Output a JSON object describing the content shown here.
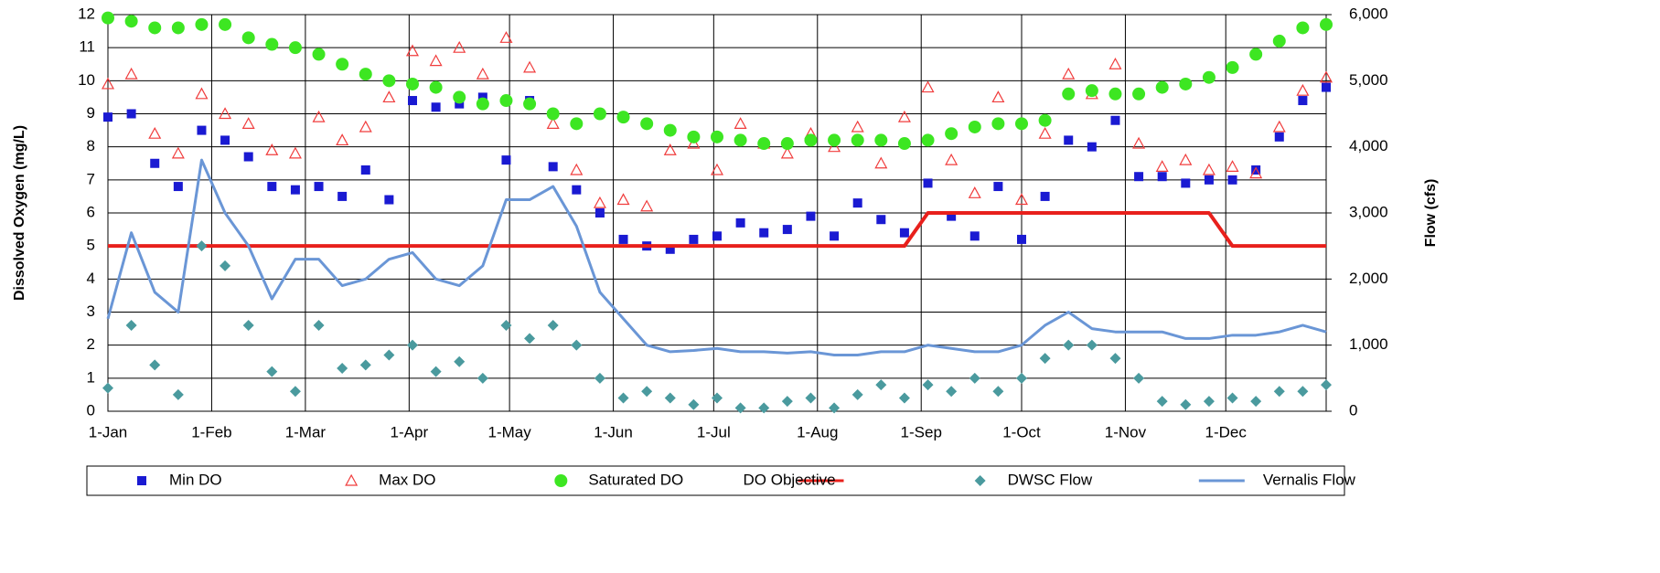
{
  "chart_data": {
    "type": "line",
    "ylabel": "Dissolved Oxygen (mg/L)",
    "y2label": "Flow (cfs)",
    "x": [
      "1-Jan",
      "8-Jan",
      "15-Jan",
      "22-Jan",
      "29-Jan",
      "5-Feb",
      "12-Feb",
      "19-Feb",
      "26-Feb",
      "5-Mar",
      "12-Mar",
      "19-Mar",
      "26-Mar",
      "2-Apr",
      "9-Apr",
      "16-Apr",
      "23-Apr",
      "30-Apr",
      "7-May",
      "14-May",
      "21-May",
      "28-May",
      "4-Jun",
      "11-Jun",
      "18-Jun",
      "25-Jun",
      "2-Jul",
      "9-Jul",
      "16-Jul",
      "23-Jul",
      "30-Jul",
      "6-Aug",
      "13-Aug",
      "20-Aug",
      "27-Aug",
      "3-Sep",
      "10-Sep",
      "17-Sep",
      "24-Sep",
      "1-Oct",
      "8-Oct",
      "15-Oct",
      "22-Oct",
      "29-Oct",
      "5-Nov",
      "12-Nov",
      "19-Nov",
      "26-Nov",
      "3-Dec",
      "10-Dec",
      "17-Dec",
      "24-Dec",
      "31-Dec"
    ],
    "xlim": [
      1,
      365
    ],
    "xticks": [
      {
        "value": 1,
        "label": "1-Jan"
      },
      {
        "value": 32,
        "label": "1-Feb"
      },
      {
        "value": 60,
        "label": "1-Mar"
      },
      {
        "value": 91,
        "label": "1-Apr"
      },
      {
        "value": 121,
        "label": "1-May"
      },
      {
        "value": 152,
        "label": "1-Jun"
      },
      {
        "value": 182,
        "label": "1-Jul"
      },
      {
        "value": 213,
        "label": "1-Aug"
      },
      {
        "value": 244,
        "label": "1-Sep"
      },
      {
        "value": 274,
        "label": "1-Oct"
      },
      {
        "value": 305,
        "label": "1-Nov"
      },
      {
        "value": 335,
        "label": "1-Dec"
      }
    ],
    "ylim": [
      0,
      12
    ],
    "yticks": [
      0,
      1,
      2,
      3,
      4,
      5,
      6,
      7,
      8,
      9,
      10,
      11,
      12
    ],
    "y2lim": [
      0,
      6000
    ],
    "y2ticks": [
      0,
      {
        "value": 1000,
        "label": "1,000"
      },
      {
        "value": 2000,
        "label": "2,000"
      },
      {
        "value": 3000,
        "label": "3,000"
      },
      {
        "value": 4000,
        "label": "4,000"
      },
      {
        "value": 5000,
        "label": "5,000"
      },
      {
        "value": 6000,
        "label": "6,000"
      }
    ],
    "grid": true,
    "legend": "bottom",
    "series": [
      {
        "name": "Min DO",
        "color": "#1a1ad2",
        "marker": "square",
        "line": false,
        "values": [
          8.9,
          9.0,
          7.5,
          6.8,
          8.5,
          8.2,
          7.7,
          6.8,
          6.7,
          6.8,
          6.5,
          7.3,
          6.4,
          9.4,
          9.2,
          9.3,
          9.5,
          7.6,
          9.4,
          7.4,
          6.7,
          6.0,
          5.2,
          5.0,
          4.9,
          5.2,
          5.3,
          5.7,
          5.4,
          5.5,
          5.9,
          5.3,
          6.3,
          5.8,
          5.4,
          6.9,
          5.9,
          5.3,
          6.8,
          5.2,
          6.5,
          8.2,
          8.0,
          8.8,
          7.1,
          7.1,
          6.9,
          7.0,
          7.0,
          7.3,
          8.3,
          9.4,
          9.8
        ]
      },
      {
        "name": "Max DO",
        "color": "#f03c3c",
        "marker": "triangle",
        "line": false,
        "values": [
          9.9,
          10.2,
          8.4,
          7.8,
          9.6,
          9.0,
          8.7,
          7.9,
          7.8,
          8.9,
          8.2,
          8.6,
          9.5,
          10.9,
          10.6,
          11.0,
          10.2,
          11.3,
          10.4,
          8.7,
          7.3,
          6.3,
          6.4,
          6.2,
          7.9,
          8.1,
          7.3,
          8.7,
          8.1,
          7.8,
          8.4,
          8.0,
          8.6,
          7.5,
          8.9,
          9.8,
          7.6,
          6.6,
          9.5,
          6.4,
          8.4,
          10.2,
          9.6,
          10.5,
          8.1,
          7.4,
          7.6,
          7.3,
          7.4,
          7.2,
          8.6,
          9.7,
          10.1
        ]
      },
      {
        "name": "Saturated DO",
        "color": "#3de622",
        "marker": "circle",
        "line": false,
        "values": [
          11.9,
          11.8,
          11.6,
          11.6,
          11.7,
          11.7,
          11.3,
          11.1,
          11.0,
          10.8,
          10.5,
          10.2,
          10.0,
          9.9,
          9.8,
          9.5,
          9.3,
          9.4,
          9.3,
          9.0,
          8.7,
          9.0,
          8.9,
          8.7,
          8.5,
          8.3,
          8.3,
          8.2,
          8.1,
          8.1,
          8.2,
          8.2,
          8.2,
          8.2,
          8.1,
          8.2,
          8.4,
          8.6,
          8.7,
          8.7,
          8.8,
          9.6,
          9.7,
          9.6,
          9.6,
          9.8,
          9.9,
          10.1,
          10.4,
          10.8,
          11.2,
          11.6,
          11.7
        ]
      },
      {
        "name": "DO Objective",
        "color": "#e8201c",
        "marker": "none",
        "line": true,
        "values": [
          5,
          5,
          5,
          5,
          5,
          5,
          5,
          5,
          5,
          5,
          5,
          5,
          5,
          5,
          5,
          5,
          5,
          5,
          5,
          5,
          5,
          5,
          5,
          5,
          5,
          5,
          5,
          5,
          5,
          5,
          5,
          5,
          5,
          5,
          5,
          6,
          6,
          6,
          6,
          6,
          6,
          6,
          6,
          6,
          6,
          6,
          6,
          6,
          5,
          5,
          5,
          5,
          5
        ]
      },
      {
        "name": "DWSC Flow",
        "color": "#4a9a9e",
        "marker": "diamond",
        "line": false,
        "axis": "y2",
        "values": [
          350,
          1300,
          700,
          250,
          2500,
          2200,
          1300,
          600,
          300,
          1300,
          650,
          700,
          850,
          1000,
          600,
          750,
          500,
          1300,
          1100,
          1300,
          1000,
          500,
          200,
          300,
          200,
          100,
          200,
          50,
          50,
          150,
          200,
          50,
          250,
          400,
          200,
          400,
          300,
          500,
          300,
          500,
          800,
          1000,
          1000,
          800,
          500,
          150,
          100,
          150,
          200,
          150,
          300,
          300,
          400
        ]
      },
      {
        "name": "Vernalis Flow",
        "color": "#6a96d6",
        "marker": "none",
        "line": true,
        "axis": "y2",
        "values": [
          1400,
          2700,
          1800,
          1500,
          3800,
          3000,
          2500,
          1700,
          2300,
          2300,
          1900,
          2000,
          2300,
          2400,
          2000,
          1900,
          2200,
          3200,
          3200,
          3400,
          2800,
          1800,
          1400,
          1000,
          900,
          920,
          950,
          900,
          900,
          880,
          900,
          850,
          850,
          900,
          900,
          1000,
          950,
          900,
          900,
          1000,
          1300,
          1500,
          1250,
          1200,
          1200,
          1200,
          1100,
          1100,
          1150,
          1150,
          1200,
          1300,
          1200
        ]
      }
    ]
  }
}
